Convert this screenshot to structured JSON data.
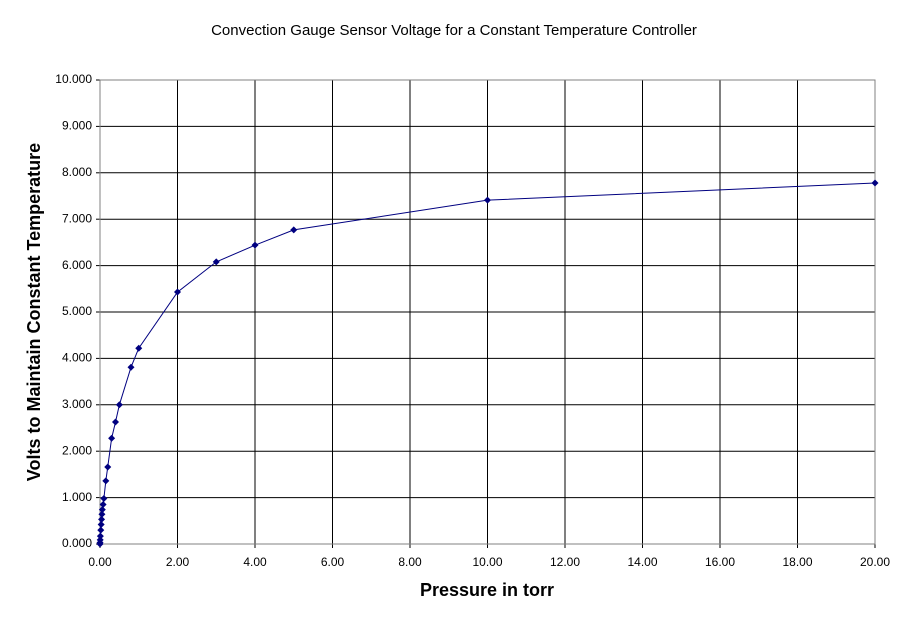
{
  "chart_data": {
    "type": "line",
    "title": "Convection Gauge Sensor Voltage for a Constant Temperature Controller",
    "x_label": "Pressure in torr",
    "y_label": "Volts to Maintain Constant Temperature",
    "x": [
      0,
      0.001,
      0.005,
      0.01,
      0.02,
      0.03,
      0.04,
      0.05,
      0.06,
      0.08,
      0.1,
      0.15,
      0.2,
      0.3,
      0.4,
      0.5,
      0.8,
      1,
      2,
      3,
      4,
      5,
      10,
      20
    ],
    "series": [
      {
        "name": "Volts",
        "color": "#000080",
        "values": [
          0.0,
          0.03,
          0.09,
          0.17,
          0.3,
          0.42,
          0.53,
          0.64,
          0.74,
          0.85,
          0.98,
          1.36,
          1.66,
          2.28,
          2.63,
          3.0,
          3.81,
          4.22,
          5.43,
          6.08,
          6.44,
          6.77,
          7.41,
          7.78
        ]
      }
    ],
    "xlim": [
      0,
      20
    ],
    "ylim": [
      0,
      10
    ],
    "xticks": [
      {
        "value": 0,
        "label": "0.00"
      },
      {
        "value": 2,
        "label": "2.00"
      },
      {
        "value": 4,
        "label": "4.00"
      },
      {
        "value": 6,
        "label": "6.00"
      },
      {
        "value": 8,
        "label": "8.00"
      },
      {
        "value": 10,
        "label": "10.00"
      },
      {
        "value": 12,
        "label": "12.00"
      },
      {
        "value": 14,
        "label": "14.00"
      },
      {
        "value": 16,
        "label": "16.00"
      },
      {
        "value": 18,
        "label": "18.00"
      },
      {
        "value": 20,
        "label": "20.00"
      }
    ],
    "yticks": [
      {
        "value": 0,
        "label": "0.000"
      },
      {
        "value": 1,
        "label": "1.000"
      },
      {
        "value": 2,
        "label": "2.000"
      },
      {
        "value": 3,
        "label": "3.000"
      },
      {
        "value": 4,
        "label": "4.000"
      },
      {
        "value": 5,
        "label": "5.000"
      },
      {
        "value": 6,
        "label": "6.000"
      },
      {
        "value": 7,
        "label": "7.000"
      },
      {
        "value": 8,
        "label": "8.000"
      },
      {
        "value": 9,
        "label": "9.000"
      },
      {
        "value": 10,
        "label": "10.000"
      }
    ],
    "grid": true
  }
}
